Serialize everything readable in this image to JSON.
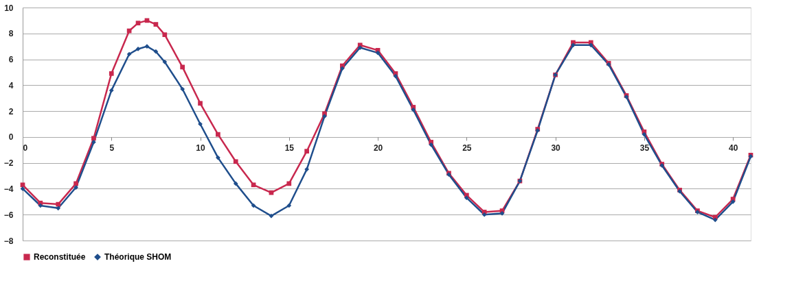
{
  "chart_data": {
    "type": "line",
    "x": [
      0,
      1,
      2,
      3,
      4,
      5,
      6,
      6.5,
      7,
      7.5,
      8,
      9,
      10,
      11,
      12,
      13,
      14,
      15,
      16,
      17,
      18,
      19,
      20,
      21,
      22,
      23,
      24,
      25,
      26,
      27,
      28,
      29,
      30,
      31,
      32,
      33,
      34,
      35,
      36,
      37,
      38,
      39,
      40,
      41
    ],
    "series": [
      {
        "name": "Reconstituée",
        "color": "#c8284e",
        "marker": "square",
        "values": [
          -3.7,
          -5.1,
          -5.2,
          -3.6,
          -0.1,
          4.9,
          8.2,
          8.8,
          9.0,
          8.7,
          7.9,
          5.4,
          2.6,
          0.2,
          -1.9,
          -3.7,
          -4.3,
          -3.6,
          -1.1,
          1.8,
          5.5,
          7.1,
          6.7,
          4.9,
          2.3,
          -0.4,
          -2.8,
          -4.5,
          -5.8,
          -5.7,
          -3.4,
          0.6,
          4.8,
          7.3,
          7.3,
          5.7,
          3.2,
          0.4,
          -2.1,
          -4.1,
          -5.7,
          -6.2,
          -4.8,
          -1.4
        ]
      },
      {
        "name": "Théorique SHOM",
        "color": "#1f4e8c",
        "marker": "diamond",
        "values": [
          -4.0,
          -5.3,
          -5.5,
          -3.9,
          -0.4,
          3.6,
          6.4,
          6.8,
          7.0,
          6.6,
          5.8,
          3.7,
          1.0,
          -1.6,
          -3.6,
          -5.3,
          -6.1,
          -5.3,
          -2.5,
          1.6,
          5.3,
          6.9,
          6.5,
          4.7,
          2.1,
          -0.6,
          -2.9,
          -4.7,
          -6.0,
          -5.9,
          -3.4,
          0.5,
          4.8,
          7.1,
          7.1,
          5.6,
          3.1,
          0.2,
          -2.2,
          -4.2,
          -5.8,
          -6.4,
          -5.0,
          -1.5
        ]
      }
    ],
    "xlim": [
      0,
      41
    ],
    "xticks": [
      0,
      5,
      10,
      15,
      20,
      25,
      30,
      35,
      40
    ],
    "ylim": [
      -8,
      10
    ],
    "yticks": [
      -8,
      -6,
      -4,
      -2,
      0,
      2,
      4,
      6,
      8,
      10
    ],
    "grid": "y",
    "legend": "bottom",
    "line_style": "solid"
  }
}
